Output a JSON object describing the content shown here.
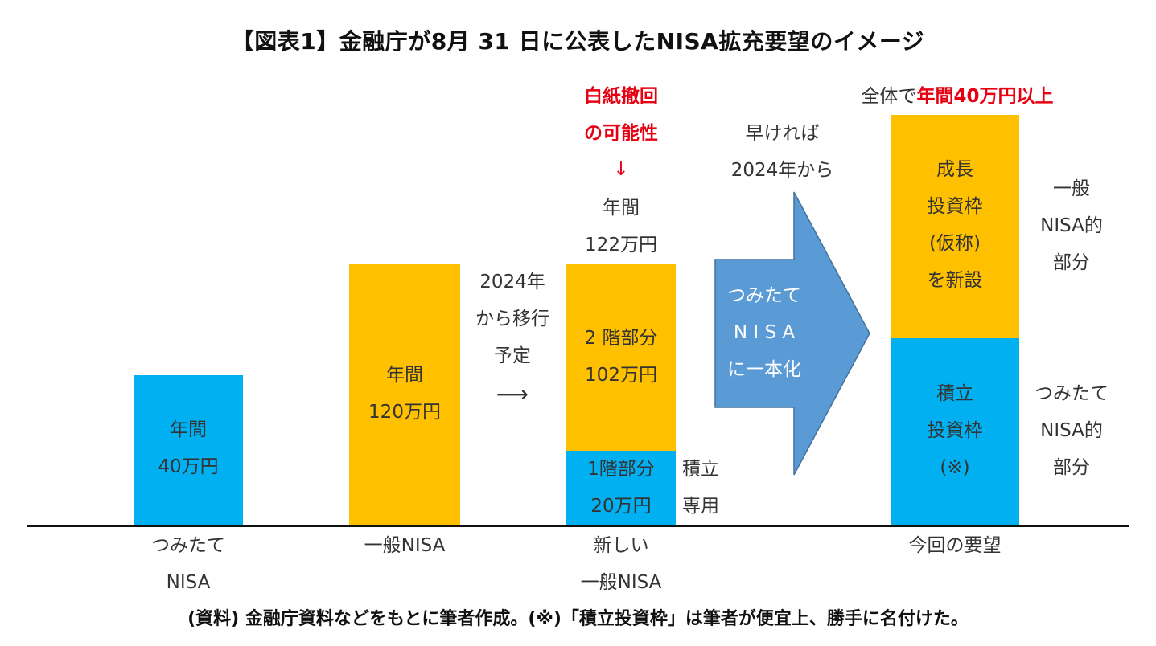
{
  "title": "【図表1】金融庁が8月 31 日に公表したNISA拡充要望のイメージ",
  "colors": {
    "blue": "#00b0f0",
    "orange": "#ffc000",
    "arrow": "#5b9bd5",
    "red": "#e60012"
  },
  "bars": {
    "tsumitate": {
      "lines": [
        "年間",
        "40万円"
      ]
    },
    "ippan": {
      "lines": [
        "年間",
        "120万円"
      ]
    },
    "new_upper": {
      "lines": [
        "2 階部分",
        "102万円"
      ]
    },
    "new_lower": {
      "lines": [
        "1階部分",
        "20万円"
      ]
    },
    "req_upper": {
      "lines": [
        "成長",
        "投資枠",
        "(仮称)",
        "を新設"
      ]
    },
    "req_lower": {
      "lines": [
        "積立",
        "投資枠",
        "(※)"
      ]
    }
  },
  "annotations": {
    "shift": [
      "2024年",
      "から移行",
      "予定"
    ],
    "shift_arrow": "⟶",
    "withdraw": [
      "白紙撤回",
      "の可能性"
    ],
    "down_arrow": "↓",
    "new_total": [
      "年間",
      "122万円"
    ],
    "tsumitate_only": [
      "積立",
      "専用"
    ],
    "early": [
      "早ければ",
      "2024年から"
    ],
    "unify": [
      "つみたて",
      "N I S A",
      "に一本化"
    ],
    "overall_prefix": "全体で",
    "overall_highlight": "年間40万円以上",
    "ippan_part": [
      "一般",
      "NISA的",
      "部分"
    ],
    "tsumitate_part": [
      "つみたて",
      "NISA的",
      "部分"
    ]
  },
  "categories": {
    "tsumitate": [
      "つみたて",
      "NISA"
    ],
    "ippan": [
      "一般NISA"
    ],
    "new": [
      "新しい",
      "一般NISA"
    ],
    "request": [
      "今回の要望"
    ]
  },
  "source": "(資料) 金融庁資料などをもとに筆者作成。(※)「積立投資枠」は筆者が便宜上、勝手に名付けた。"
}
